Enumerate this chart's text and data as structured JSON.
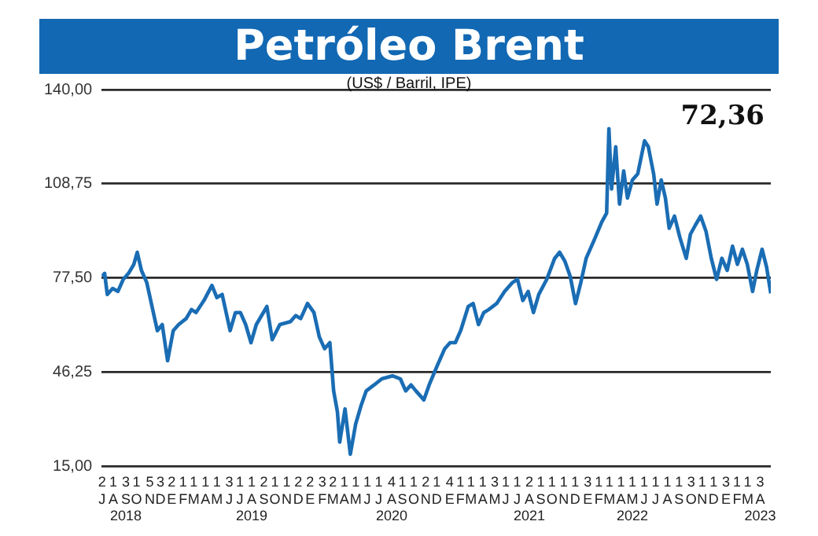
{
  "chart_data": {
    "type": "line",
    "title": "Petróleo Brent",
    "subtitle": "(US$ / Barril, IPE)",
    "annotations": [
      "72,36"
    ],
    "xlim": [
      "2018-07-01",
      "2023-05-01"
    ],
    "ylim": [
      15,
      140
    ],
    "yticks": [
      {
        "value": 15,
        "label": "15,00"
      },
      {
        "value": 46.25,
        "label": "46,25"
      },
      {
        "value": 77.5,
        "label": "77,50"
      },
      {
        "value": 108.75,
        "label": "108,75"
      },
      {
        "value": 140,
        "label": "140,00"
      }
    ],
    "xticks": [
      {
        "value": "2018-07-02",
        "label": "2\nJ"
      },
      {
        "value": "2018-08-01",
        "label": "1\nA"
      },
      {
        "value": "2018-09-03",
        "label": "3\nS\n2018"
      },
      {
        "value": "2018-10-01",
        "label": "1\nO"
      },
      {
        "value": "2018-11-05",
        "label": "5\nN"
      },
      {
        "value": "2018-12-03",
        "label": "3\nD"
      },
      {
        "value": "2019-01-02",
        "label": "2\nE"
      },
      {
        "value": "2019-02-01",
        "label": "1\nF"
      },
      {
        "value": "2019-03-01",
        "label": "1\nM"
      },
      {
        "value": "2019-04-01",
        "label": "1\nA"
      },
      {
        "value": "2019-05-01",
        "label": "1\nM"
      },
      {
        "value": "2019-06-03",
        "label": "3\nJ"
      },
      {
        "value": "2019-07-01",
        "label": "1\nJ"
      },
      {
        "value": "2019-08-01",
        "label": "1\nA\n2019"
      },
      {
        "value": "2019-09-02",
        "label": "2\nS"
      },
      {
        "value": "2019-10-01",
        "label": "1\nO"
      },
      {
        "value": "2019-11-01",
        "label": "1\nN"
      },
      {
        "value": "2019-12-02",
        "label": "2\nD"
      },
      {
        "value": "2020-01-02",
        "label": "2\nE"
      },
      {
        "value": "2020-02-03",
        "label": "3\nF"
      },
      {
        "value": "2020-03-02",
        "label": "2\nM"
      },
      {
        "value": "2020-04-01",
        "label": "1\nA"
      },
      {
        "value": "2020-05-01",
        "label": "1\nM"
      },
      {
        "value": "2020-06-01",
        "label": "1\nJ"
      },
      {
        "value": "2020-07-01",
        "label": "1\nJ"
      },
      {
        "value": "2020-08-04",
        "label": "4\nA\n2020"
      },
      {
        "value": "2020-09-01",
        "label": "1\nS"
      },
      {
        "value": "2020-10-01",
        "label": "1\nO"
      },
      {
        "value": "2020-11-02",
        "label": "2\nN"
      },
      {
        "value": "2020-12-01",
        "label": "1\nD"
      },
      {
        "value": "2021-01-04",
        "label": "4\nE"
      },
      {
        "value": "2021-02-01",
        "label": "1\nF"
      },
      {
        "value": "2021-03-01",
        "label": "1\nM"
      },
      {
        "value": "2021-04-01",
        "label": "1\nA"
      },
      {
        "value": "2021-05-03",
        "label": "3\nM"
      },
      {
        "value": "2021-06-01",
        "label": "1\nJ"
      },
      {
        "value": "2021-07-01",
        "label": "1\nJ"
      },
      {
        "value": "2021-08-02",
        "label": "2\nA\n2021"
      },
      {
        "value": "2021-09-01",
        "label": "1\nS"
      },
      {
        "value": "2021-10-01",
        "label": "1\nO"
      },
      {
        "value": "2021-11-01",
        "label": "1\nN"
      },
      {
        "value": "2021-12-01",
        "label": "1\nD"
      },
      {
        "value": "2022-01-03",
        "label": "3\nE"
      },
      {
        "value": "2022-02-01",
        "label": "1\nF"
      },
      {
        "value": "2022-03-01",
        "label": "1\nM"
      },
      {
        "value": "2022-04-01",
        "label": "1\nA"
      },
      {
        "value": "2022-05-01",
        "label": "1\nM\n2022"
      },
      {
        "value": "2022-06-01",
        "label": "1\nJ"
      },
      {
        "value": "2022-07-01",
        "label": "1\nJ"
      },
      {
        "value": "2022-08-01",
        "label": "1\nA"
      },
      {
        "value": "2022-09-01",
        "label": "1\nS"
      },
      {
        "value": "2022-10-03",
        "label": "3\nO"
      },
      {
        "value": "2022-11-01",
        "label": "1\nN"
      },
      {
        "value": "2022-12-01",
        "label": "1\nD"
      },
      {
        "value": "2023-01-03",
        "label": "3\nE"
      },
      {
        "value": "2023-02-01",
        "label": "1\nF"
      },
      {
        "value": "2023-03-01",
        "label": "1\nM"
      },
      {
        "value": "2023-04-03",
        "label": "3\nA\n2023"
      }
    ],
    "grid": "y",
    "marker": "none",
    "line_style": "solid",
    "series": [
      {
        "color": "#1a6db4",
        "x": [
          "2018-07-02",
          "2018-07-09",
          "2018-07-16",
          "2018-07-30",
          "2018-08-13",
          "2018-08-27",
          "2018-09-10",
          "2018-09-24",
          "2018-10-03",
          "2018-10-14",
          "2018-10-28",
          "2018-11-11",
          "2018-11-25",
          "2018-12-08",
          "2018-12-22",
          "2019-01-06",
          "2019-01-20",
          "2019-02-09",
          "2019-02-23",
          "2019-03-07",
          "2019-03-28",
          "2019-04-18",
          "2019-05-01",
          "2019-05-15",
          "2019-06-05",
          "2019-06-19",
          "2019-07-02",
          "2019-07-16",
          "2019-07-30",
          "2019-08-13",
          "2019-09-10",
          "2019-09-24",
          "2019-10-14",
          "2019-11-11",
          "2019-11-25",
          "2019-12-08",
          "2019-12-26",
          "2020-01-12",
          "2020-01-26",
          "2020-02-09",
          "2020-02-23",
          "2020-03-04",
          "2020-03-14",
          "2020-03-20",
          "2020-04-03",
          "2020-04-17",
          "2020-05-01",
          "2020-05-15",
          "2020-05-29",
          "2020-06-19",
          "2020-07-09",
          "2020-08-06",
          "2020-08-27",
          "2020-09-10",
          "2020-09-24",
          "2020-10-07",
          "2020-10-28",
          "2020-11-11",
          "2020-12-01",
          "2020-12-22",
          "2021-01-05",
          "2021-01-19",
          "2021-02-02",
          "2021-02-22",
          "2021-03-07",
          "2021-03-21",
          "2021-04-04",
          "2021-04-17",
          "2021-05-08",
          "2021-05-29",
          "2021-06-19",
          "2021-07-02",
          "2021-07-16",
          "2021-07-30",
          "2021-08-13",
          "2021-08-27",
          "2021-09-17",
          "2021-10-08",
          "2021-10-21",
          "2021-11-04",
          "2021-11-18",
          "2021-12-02",
          "2021-12-16",
          "2021-12-30",
          "2022-01-20",
          "2022-02-09",
          "2022-02-22",
          "2022-02-28",
          "2022-03-07",
          "2022-03-18",
          "2022-03-28",
          "2022-04-08",
          "2022-04-18",
          "2022-05-01",
          "2022-05-15",
          "2022-06-02",
          "2022-06-12",
          "2022-06-26",
          "2022-07-05",
          "2022-07-16",
          "2022-07-27",
          "2022-08-06",
          "2022-08-20",
          "2022-09-03",
          "2022-09-20",
          "2022-10-01",
          "2022-10-14",
          "2022-10-28",
          "2022-11-11",
          "2022-11-25",
          "2022-12-09",
          "2022-12-23",
          "2023-01-06",
          "2023-01-20",
          "2023-02-02",
          "2023-02-15",
          "2023-02-28",
          "2023-03-14",
          "2023-03-25",
          "2023-04-08",
          "2023-04-20",
          "2023-05-01"
        ],
        "values": [
          78,
          79,
          72,
          74,
          73,
          77,
          79,
          82,
          86,
          80,
          76,
          68,
          60,
          62,
          50,
          60,
          62,
          64,
          67,
          66,
          70,
          75,
          71,
          72,
          60,
          66,
          66,
          62,
          56,
          62,
          68,
          57,
          62,
          63,
          65,
          64,
          69,
          66,
          58,
          54,
          56,
          40,
          33,
          23,
          34,
          19,
          29,
          35,
          40,
          42,
          44,
          45,
          44,
          40,
          42,
          40,
          37,
          42,
          48,
          54,
          56,
          56,
          60,
          68,
          69,
          62,
          66,
          67,
          69,
          73,
          76,
          77,
          70,
          73,
          66,
          72,
          77,
          84,
          86,
          83,
          78,
          69,
          76,
          84,
          90,
          96,
          99,
          127,
          107,
          121,
          102,
          113,
          104,
          110,
          112,
          123,
          121,
          112,
          102,
          110,
          104,
          94,
          98,
          91,
          84,
          92,
          95,
          98,
          93,
          84,
          77,
          84,
          80,
          88,
          82,
          87,
          82,
          73,
          80,
          87,
          81,
          72.36
        ]
      }
    ]
  }
}
